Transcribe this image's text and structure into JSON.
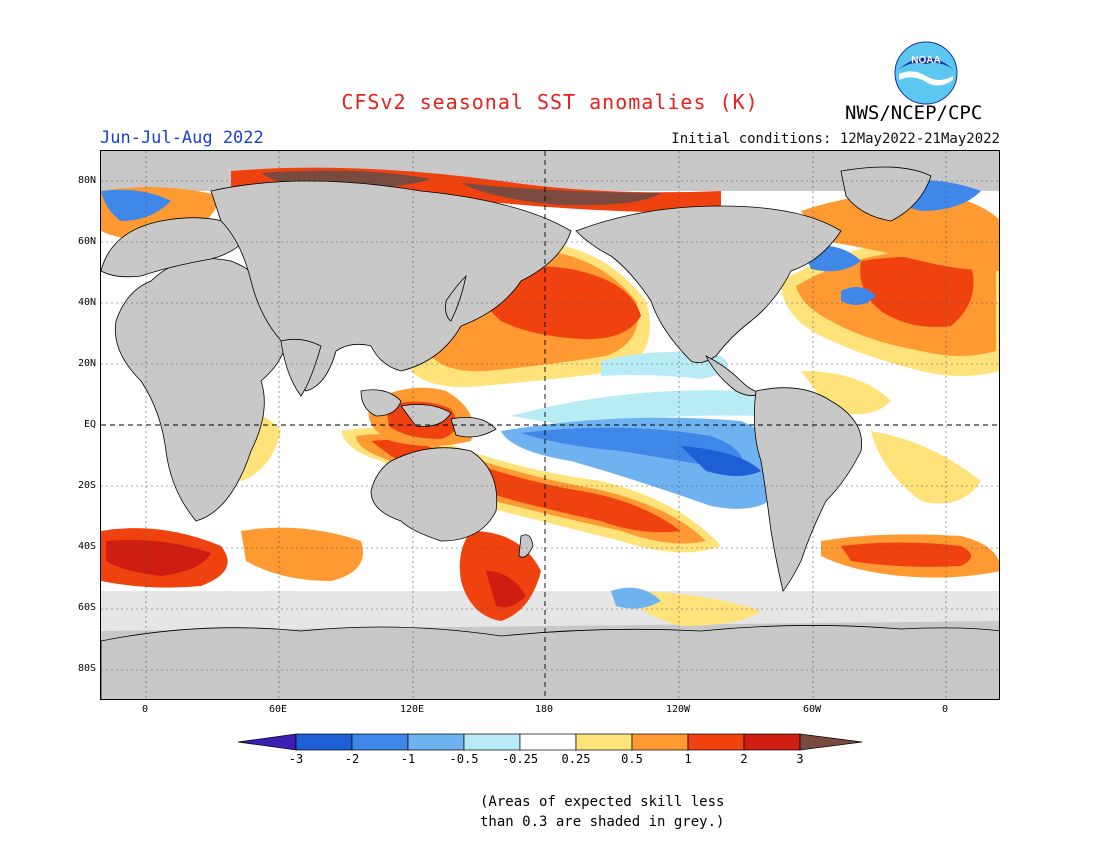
{
  "title": "CFSv2 seasonal SST anomalies (K)",
  "season": "Jun-Jul-Aug 2022",
  "initial_conditions": "Initial conditions: 12May2022-21May2022",
  "agency": "NWS/NCEP/CPC",
  "logo_text": "NOAA",
  "map": {
    "lat_labels": [
      "80N",
      "60N",
      "40N",
      "20N",
      "EQ",
      "20S",
      "40S",
      "60S",
      "80S"
    ],
    "lon_labels": [
      "0",
      "60E",
      "120E",
      "180",
      "120W",
      "60W",
      "0"
    ],
    "land_color": "#c8c8c8",
    "masked_color": "#c8c8c8"
  },
  "colorbar": {
    "labels": [
      "-3",
      "-2",
      "-1",
      "-0.5",
      "-0.25",
      "0.25",
      "0.5",
      "1",
      "2",
      "3"
    ],
    "colors": [
      "#3b1fb5",
      "#1f5fd6",
      "#3f87e8",
      "#6fb2f0",
      "#b7ecf5",
      "#ffffff",
      "#ffe37a",
      "#ff9a33",
      "#f0420f",
      "#cf1d12",
      "#a50d0d",
      "#7a4a3f"
    ]
  },
  "note": [
    "(Areas of expected skill less",
    "than 0.3 are shaded in grey.)"
  ]
}
